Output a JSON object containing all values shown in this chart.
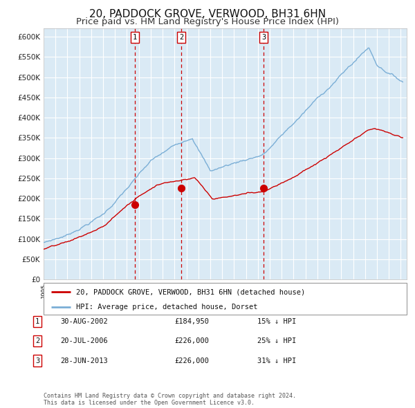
{
  "title": "20, PADDOCK GROVE, VERWOOD, BH31 6HN",
  "subtitle": "Price paid vs. HM Land Registry's House Price Index (HPI)",
  "title_fontsize": 11,
  "subtitle_fontsize": 9.5,
  "background_color": "#ffffff",
  "plot_bg_color": "#daeaf5",
  "grid_color": "#ffffff",
  "ylim": [
    0,
    620000
  ],
  "yticks": [
    0,
    50000,
    100000,
    150000,
    200000,
    250000,
    300000,
    350000,
    400000,
    450000,
    500000,
    550000,
    600000
  ],
  "xlim_start": 1995.0,
  "xlim_end": 2025.5,
  "legend_entries": [
    "20, PADDOCK GROVE, VERWOOD, BH31 6HN (detached house)",
    "HPI: Average price, detached house, Dorset"
  ],
  "legend_colors": [
    "#cc0000",
    "#7aaed6"
  ],
  "sale_points": [
    {
      "date_dec": 2002.663,
      "price": 184950,
      "label": "1"
    },
    {
      "date_dec": 2006.554,
      "price": 226000,
      "label": "2"
    },
    {
      "date_dec": 2013.49,
      "price": 226000,
      "label": "3"
    }
  ],
  "vline_color": "#cc0000",
  "table_rows": [
    {
      "num": "1",
      "date": "30-AUG-2002",
      "price": "£184,950",
      "hpi": "15% ↓ HPI"
    },
    {
      "num": "2",
      "date": "20-JUL-2006",
      "price": "£226,000",
      "hpi": "25% ↓ HPI"
    },
    {
      "num": "3",
      "date": "28-JUN-2013",
      "price": "£226,000",
      "hpi": "31% ↓ HPI"
    }
  ],
  "footnote": "Contains HM Land Registry data © Crown copyright and database right 2024.\nThis data is licensed under the Open Government Licence v3.0.",
  "hpi_line_color": "#7aaed6",
  "price_line_color": "#cc0000"
}
